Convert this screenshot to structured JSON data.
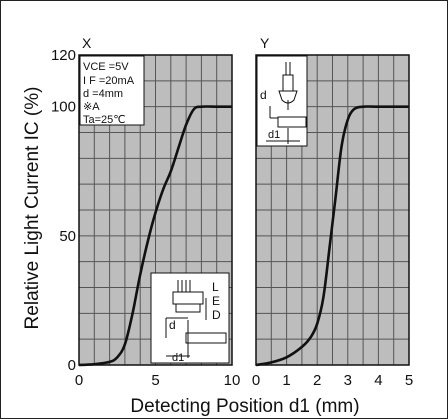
{
  "chart_data": [
    {
      "id": "X",
      "type": "line",
      "panel_label": "X",
      "xlim": [
        0,
        10
      ],
      "ylim": [
        0,
        120
      ],
      "xticks": [
        "0",
        "5",
        "10"
      ],
      "yticks": [
        "0",
        "50",
        "100",
        "120"
      ],
      "grid": true,
      "series": [
        {
          "x": [
            0,
            1,
            2,
            2.5,
            3,
            3.5,
            4,
            4.5,
            5,
            5.5,
            6,
            6.5,
            7,
            7.5,
            8,
            9,
            10
          ],
          "y": [
            0,
            0.3,
            1.2,
            3,
            8,
            20,
            35,
            48,
            59,
            68,
            75,
            84,
            93,
            99,
            100,
            100,
            100
          ]
        }
      ],
      "conditions": [
        "VCE =5V",
        "I F =20mA",
        "d =4mm",
        "※A",
        "Ta=25℃"
      ],
      "inset_labels": [
        "L",
        "E",
        "D",
        "d",
        "d1"
      ]
    },
    {
      "id": "Y",
      "type": "line",
      "panel_label": "Y",
      "xlim": [
        0,
        5
      ],
      "ylim": [
        0,
        120
      ],
      "xticks": [
        "0",
        "1",
        "2",
        "3",
        "4",
        "5"
      ],
      "grid": true,
      "series": [
        {
          "x": [
            0,
            0.5,
            1,
            1.5,
            1.8,
            2.0,
            2.2,
            2.4,
            2.6,
            2.8,
            3.0,
            3.2,
            3.5,
            4,
            5
          ],
          "y": [
            0,
            1,
            3,
            7,
            11,
            16,
            26,
            45,
            65,
            85,
            95,
            99,
            100,
            100,
            100
          ]
        }
      ],
      "inset_labels": [
        "d",
        "d1"
      ]
    }
  ],
  "ylabel": "Relative Light Current  IC (%)",
  "xlabel": "Detecting Position  d1 (mm)"
}
